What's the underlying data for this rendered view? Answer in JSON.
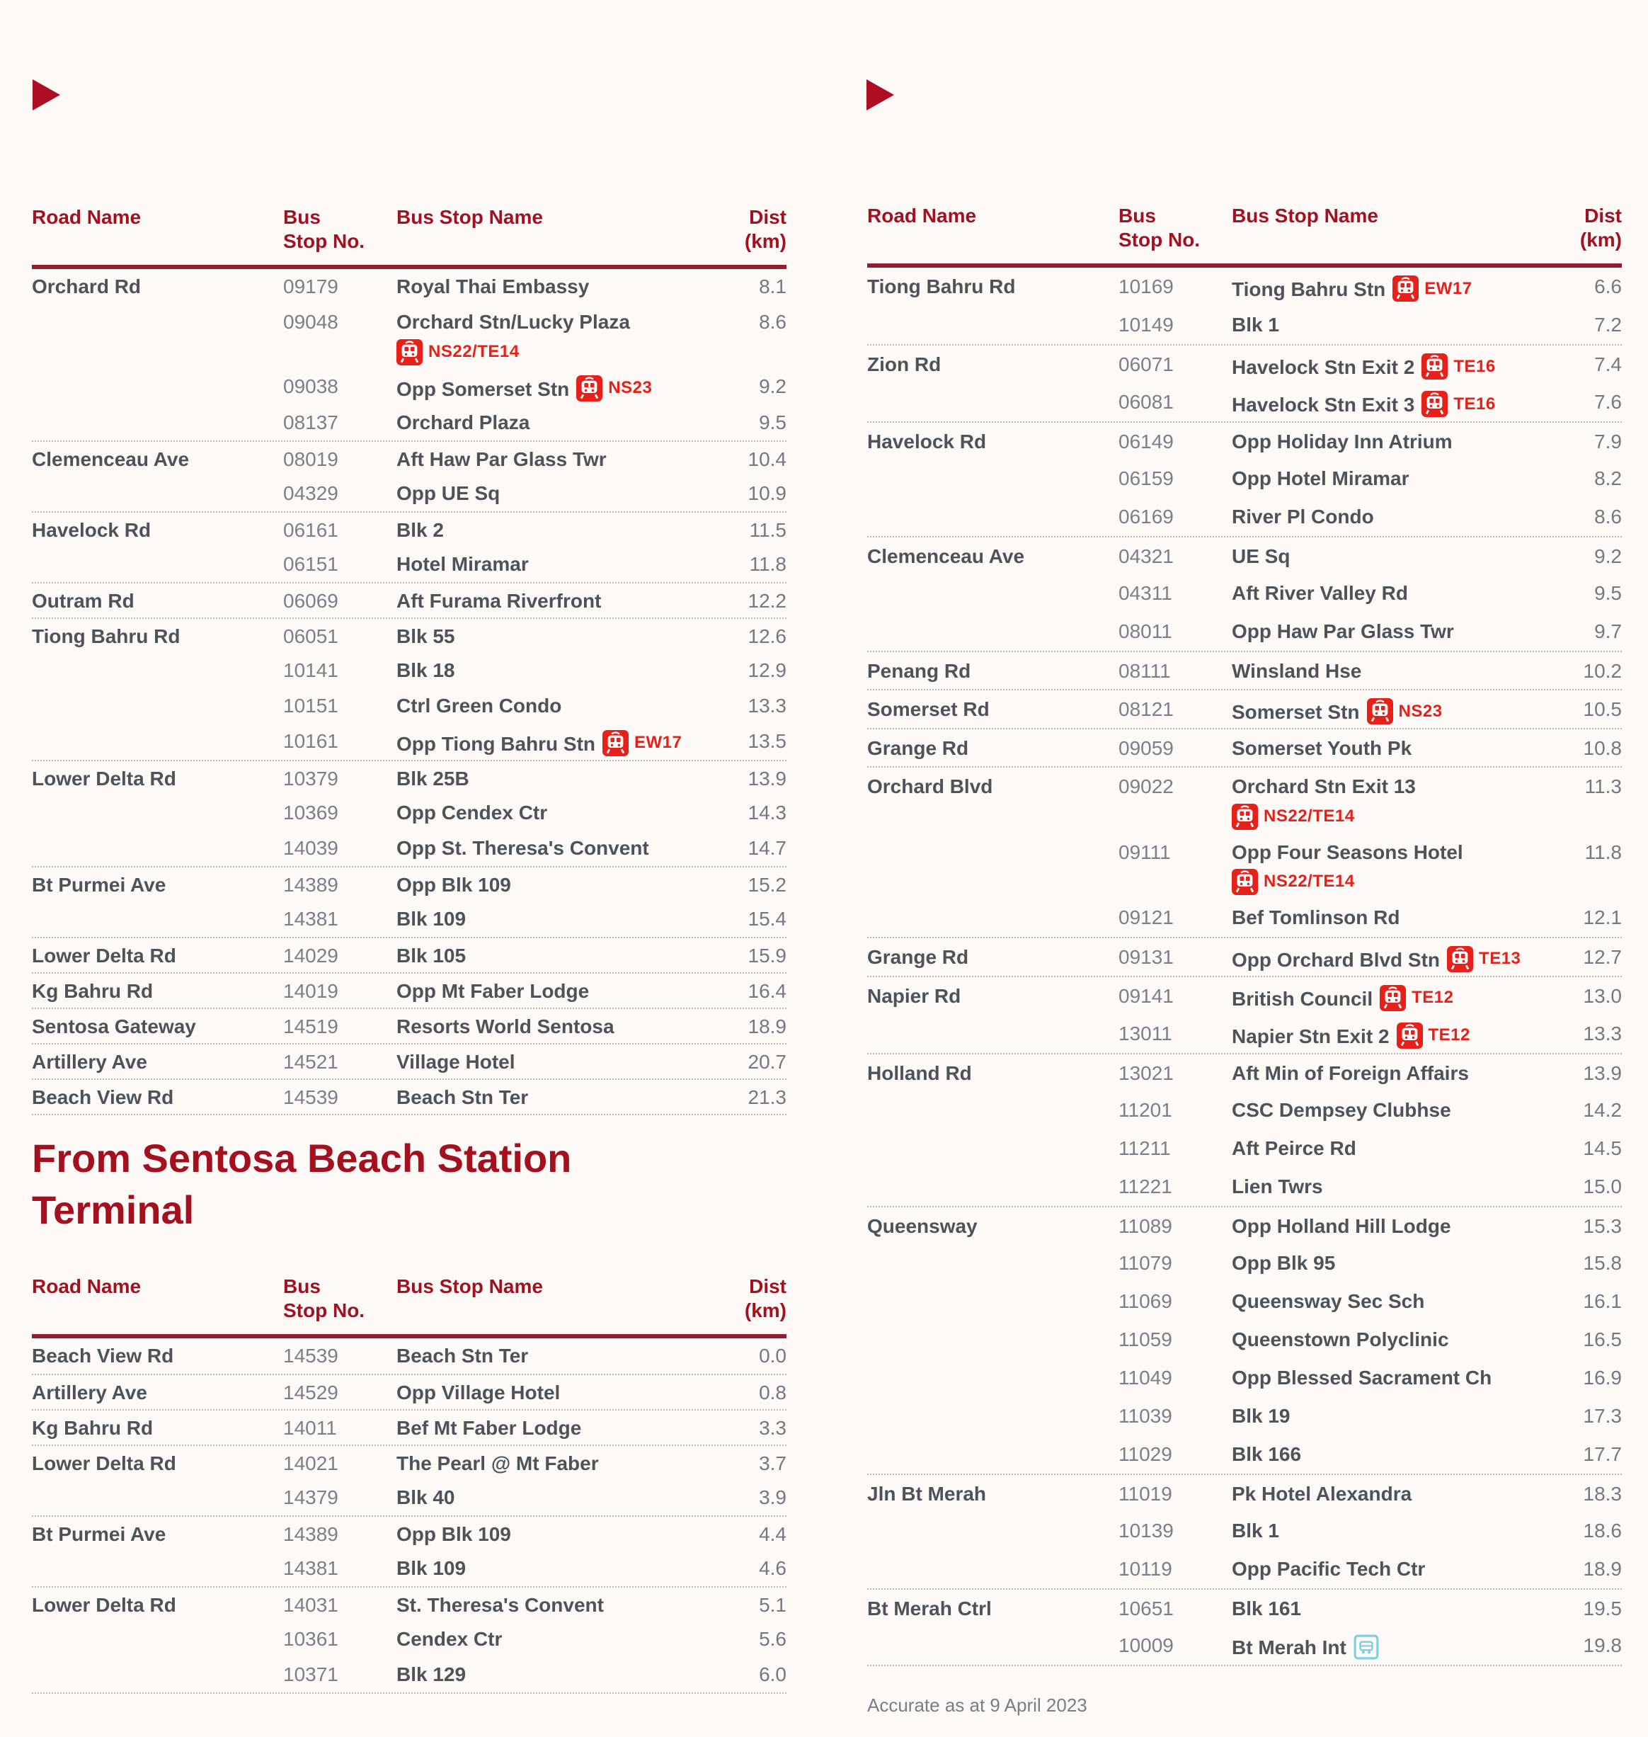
{
  "page": {
    "section2_title": "From Sentosa Beach Station Terminal",
    "footer_note": "Accurate as at 9 April 2023",
    "colors": {
      "accent_red": "#a5101f",
      "rule_red": "#931c2d",
      "marker_red": "#ae0e23",
      "badge_red": "#e8201a",
      "interchange_teal": "#7fd0e0",
      "body_text": "#515256",
      "muted_text": "#7e7f83",
      "background": "#fcf9f7"
    }
  },
  "header_labels": {
    "road": "Road Name",
    "stop_no": "Bus\nStop No.",
    "stop_name": "Bus Stop Name",
    "dist": "Dist\n(km)"
  },
  "tables": {
    "to_sentosa": {
      "rows": [
        {
          "road": "Orchard Rd",
          "no": "09179",
          "name": "Royal Thai Embassy",
          "dist": "8.1"
        },
        {
          "road": "",
          "no": "09048",
          "name": "Orchard Stn/Lucky Plaza",
          "badge": {
            "type": "mrt",
            "code": "NS22/TE14",
            "placement": "below"
          },
          "dist": "8.6"
        },
        {
          "road": "",
          "no": "09038",
          "name": "Opp Somerset Stn",
          "badge": {
            "type": "mrt",
            "code": "NS23",
            "placement": "inline"
          },
          "dist": "9.2"
        },
        {
          "road": "",
          "no": "08137",
          "name": "Orchard Plaza",
          "dist": "9.5"
        },
        {
          "road": "Clemenceau Ave",
          "no": "08019",
          "name": "Aft Haw Par Glass Twr",
          "dist": "10.4"
        },
        {
          "road": "",
          "no": "04329",
          "name": "Opp UE Sq",
          "dist": "10.9"
        },
        {
          "road": "Havelock Rd",
          "no": "06161",
          "name": "Blk 2",
          "dist": "11.5"
        },
        {
          "road": "",
          "no": "06151",
          "name": "Hotel Miramar",
          "dist": "11.8"
        },
        {
          "road": "Outram Rd",
          "no": "06069",
          "name": "Aft Furama Riverfront",
          "dist": "12.2"
        },
        {
          "road": "Tiong Bahru Rd",
          "no": "06051",
          "name": "Blk 55",
          "dist": "12.6"
        },
        {
          "road": "",
          "no": "10141",
          "name": "Blk 18",
          "dist": "12.9"
        },
        {
          "road": "",
          "no": "10151",
          "name": "Ctrl Green Condo",
          "dist": "13.3"
        },
        {
          "road": "",
          "no": "10161",
          "name": "Opp Tiong Bahru Stn",
          "badge": {
            "type": "mrt",
            "code": "EW17",
            "placement": "inline"
          },
          "dist": "13.5"
        },
        {
          "road": "Lower Delta Rd",
          "no": "10379",
          "name": "Blk 25B",
          "dist": "13.9"
        },
        {
          "road": "",
          "no": "10369",
          "name": "Opp Cendex Ctr",
          "dist": "14.3"
        },
        {
          "road": "",
          "no": "14039",
          "name": "Opp St. Theresa's Convent",
          "dist": "14.7"
        },
        {
          "road": "Bt Purmei Ave",
          "no": "14389",
          "name": "Opp Blk 109",
          "dist": "15.2"
        },
        {
          "road": "",
          "no": "14381",
          "name": "Blk 109",
          "dist": "15.4"
        },
        {
          "road": "Lower Delta Rd",
          "no": "14029",
          "name": "Blk 105",
          "dist": "15.9"
        },
        {
          "road": "Kg Bahru Rd",
          "no": "14019",
          "name": "Opp Mt Faber Lodge",
          "dist": "16.4"
        },
        {
          "road": "Sentosa Gateway",
          "no": "14519",
          "name": "Resorts World Sentosa",
          "dist": "18.9"
        },
        {
          "road": "Artillery Ave",
          "no": "14521",
          "name": "Village Hotel",
          "dist": "20.7"
        },
        {
          "road": "Beach View Rd",
          "no": "14539",
          "name": "Beach Stn Ter",
          "dist": "21.3"
        }
      ]
    },
    "from_sentosa": {
      "rows": [
        {
          "road": "Beach View Rd",
          "no": "14539",
          "name": "Beach Stn Ter",
          "dist": "0.0"
        },
        {
          "road": "Artillery Ave",
          "no": "14529",
          "name": "Opp Village Hotel",
          "dist": "0.8"
        },
        {
          "road": "Kg Bahru Rd",
          "no": "14011",
          "name": "Bef Mt Faber Lodge",
          "dist": "3.3"
        },
        {
          "road": "Lower Delta Rd",
          "no": "14021",
          "name": "The Pearl @ Mt Faber",
          "dist": "3.7"
        },
        {
          "road": "",
          "no": "14379",
          "name": "Blk 40",
          "dist": "3.9"
        },
        {
          "road": "Bt Purmei Ave",
          "no": "14389",
          "name": "Opp Blk 109",
          "dist": "4.4"
        },
        {
          "road": "",
          "no": "14381",
          "name": "Blk 109",
          "dist": "4.6"
        },
        {
          "road": "Lower Delta Rd",
          "no": "14031",
          "name": "St. Theresa's Convent",
          "dist": "5.1"
        },
        {
          "road": "",
          "no": "10361",
          "name": "Cendex Ctr",
          "dist": "5.6"
        },
        {
          "road": "",
          "no": "10371",
          "name": "Blk 129",
          "dist": "6.0"
        }
      ]
    },
    "right_column": {
      "rows": [
        {
          "road": "Tiong Bahru Rd",
          "no": "10169",
          "name": "Tiong Bahru Stn",
          "badge": {
            "type": "mrt",
            "code": "EW17",
            "placement": "inline"
          },
          "dist": "6.6"
        },
        {
          "road": "",
          "no": "10149",
          "name": "Blk 1",
          "dist": "7.2"
        },
        {
          "road": "Zion Rd",
          "no": "06071",
          "name": "Havelock Stn Exit 2",
          "badge": {
            "type": "mrt",
            "code": "TE16",
            "placement": "inline"
          },
          "dist": "7.4"
        },
        {
          "road": "",
          "no": "06081",
          "name": "Havelock Stn Exit 3",
          "badge": {
            "type": "mrt",
            "code": "TE16",
            "placement": "inline"
          },
          "dist": "7.6"
        },
        {
          "road": "Havelock Rd",
          "no": "06149",
          "name": "Opp Holiday Inn Atrium",
          "dist": "7.9"
        },
        {
          "road": "",
          "no": "06159",
          "name": "Opp Hotel Miramar",
          "dist": "8.2"
        },
        {
          "road": "",
          "no": "06169",
          "name": "River Pl Condo",
          "dist": "8.6"
        },
        {
          "road": "Clemenceau Ave",
          "no": "04321",
          "name": "UE Sq",
          "dist": "9.2"
        },
        {
          "road": "",
          "no": "04311",
          "name": "Aft River Valley Rd",
          "dist": "9.5"
        },
        {
          "road": "",
          "no": "08011",
          "name": "Opp Haw Par Glass Twr",
          "dist": "9.7"
        },
        {
          "road": "Penang Rd",
          "no": "08111",
          "name": "Winsland Hse",
          "dist": "10.2"
        },
        {
          "road": "Somerset Rd",
          "no": "08121",
          "name": "Somerset Stn",
          "badge": {
            "type": "mrt",
            "code": "NS23",
            "placement": "inline"
          },
          "dist": "10.5"
        },
        {
          "road": "Grange Rd",
          "no": "09059",
          "name": "Somerset Youth Pk",
          "dist": "10.8"
        },
        {
          "road": "Orchard Blvd",
          "no": "09022",
          "name": "Orchard Stn Exit 13",
          "badge": {
            "type": "mrt",
            "code": "NS22/TE14",
            "placement": "below"
          },
          "dist": "11.3"
        },
        {
          "road": "",
          "no": "09111",
          "name": "Opp Four Seasons Hotel",
          "badge": {
            "type": "mrt",
            "code": "NS22/TE14",
            "placement": "below"
          },
          "dist": "11.8"
        },
        {
          "road": "",
          "no": "09121",
          "name": "Bef Tomlinson Rd",
          "dist": "12.1"
        },
        {
          "road": "Grange Rd",
          "no": "09131",
          "name": "Opp Orchard Blvd Stn",
          "badge": {
            "type": "mrt",
            "code": "TE13",
            "placement": "inline"
          },
          "dist": "12.7"
        },
        {
          "road": "Napier Rd",
          "no": "09141",
          "name": "British Council",
          "badge": {
            "type": "mrt",
            "code": "TE12",
            "placement": "inline"
          },
          "dist": "13.0"
        },
        {
          "road": "",
          "no": "13011",
          "name": "Napier Stn Exit 2",
          "badge": {
            "type": "mrt",
            "code": "TE12",
            "placement": "inline"
          },
          "dist": "13.3"
        },
        {
          "road": "Holland Rd",
          "no": "13021",
          "name": "Aft Min of Foreign Affairs",
          "dist": "13.9"
        },
        {
          "road": "",
          "no": "11201",
          "name": "CSC Dempsey Clubhse",
          "dist": "14.2"
        },
        {
          "road": "",
          "no": "11211",
          "name": "Aft Peirce Rd",
          "dist": "14.5"
        },
        {
          "road": "",
          "no": "11221",
          "name": "Lien Twrs",
          "dist": "15.0"
        },
        {
          "road": "Queensway",
          "no": "11089",
          "name": "Opp Holland Hill Lodge",
          "dist": "15.3"
        },
        {
          "road": "",
          "no": "11079",
          "name": "Opp Blk 95",
          "dist": "15.8"
        },
        {
          "road": "",
          "no": "11069",
          "name": "Queensway Sec Sch",
          "dist": "16.1"
        },
        {
          "road": "",
          "no": "11059",
          "name": "Queenstown Polyclinic",
          "dist": "16.5"
        },
        {
          "road": "",
          "no": "11049",
          "name": "Opp Blessed Sacrament Ch",
          "dist": "16.9"
        },
        {
          "road": "",
          "no": "11039",
          "name": "Blk 19",
          "dist": "17.3"
        },
        {
          "road": "",
          "no": "11029",
          "name": "Blk 166",
          "dist": "17.7"
        },
        {
          "road": "Jln Bt Merah",
          "no": "11019",
          "name": "Pk Hotel Alexandra",
          "dist": "18.3"
        },
        {
          "road": "",
          "no": "10139",
          "name": "Blk 1",
          "dist": "18.6"
        },
        {
          "road": "",
          "no": "10119",
          "name": "Opp Pacific Tech Ctr",
          "dist": "18.9"
        },
        {
          "road": "Bt Merah Ctrl",
          "no": "10651",
          "name": "Blk 161",
          "dist": "19.5"
        },
        {
          "road": "",
          "no": "10009",
          "name": "Bt Merah Int",
          "badge": {
            "type": "interchange",
            "placement": "inline"
          },
          "dist": "19.8"
        }
      ]
    }
  }
}
